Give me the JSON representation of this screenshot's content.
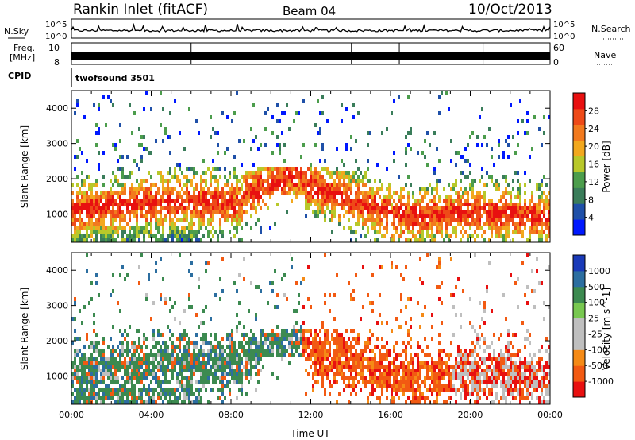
{
  "header": {
    "station": "Rankin Inlet (fitACF)",
    "beam": "Beam 04",
    "date": "10/Oct/2013"
  },
  "panels": {
    "nsky": {
      "label": "N.Sky",
      "ticks": [
        "10^5",
        "10^0"
      ],
      "right_label": "N.Search",
      "right_ticks": [
        "10^5",
        "10^0"
      ]
    },
    "freq": {
      "label": "Freq.",
      "unit": "[MHz]",
      "ticks": [
        "10",
        "8"
      ],
      "right_label": "Nave",
      "right_ticks": [
        "60",
        "0"
      ]
    },
    "cpid": {
      "label": "CPID",
      "value": "twofsound 3501"
    }
  },
  "colors": {
    "power": [
      "#0018ff",
      "#1f50a8",
      "#3a7d5a",
      "#4c9d4c",
      "#b8c82a",
      "#f2a81e",
      "#f27a1e",
      "#ee4a18",
      "#e81010"
    ],
    "velocity": [
      "#e81010",
      "#f25a12",
      "#f58a16",
      "#bfbfbf",
      "#bfbfbf",
      "#78c850",
      "#3c8a50",
      "#2c6ea0",
      "#1a3ab8"
    ]
  },
  "chart_data": [
    {
      "type": "heatmap",
      "name": "power",
      "ylabel": "Slant Range [km]",
      "yticks": [
        1000,
        2000,
        3000,
        4000
      ],
      "ylim": [
        200,
        4500
      ],
      "xlim_hours": [
        0,
        24
      ],
      "colorbar": {
        "label": "Power [dB]",
        "ticks": [
          "28",
          "24",
          "20",
          "16",
          "12",
          "8",
          "4"
        ],
        "range": [
          0,
          30
        ]
      }
    },
    {
      "type": "heatmap",
      "name": "velocity",
      "ylabel": "Slant Range [km]",
      "yticks": [
        1000,
        2000,
        3000,
        4000
      ],
      "ylim": [
        200,
        4500
      ],
      "xlim_hours": [
        0,
        24
      ],
      "xticks": [
        "00:00",
        "04:00",
        "08:00",
        "12:00",
        "16:00",
        "20:00",
        "00:00"
      ],
      "xlabel": "Time UT",
      "colorbar": {
        "label": "Velocity [m s^-1]",
        "ticks": [
          "1000",
          "500",
          "100",
          "25",
          "-25",
          "-100",
          "-500",
          "-1000"
        ]
      }
    }
  ]
}
